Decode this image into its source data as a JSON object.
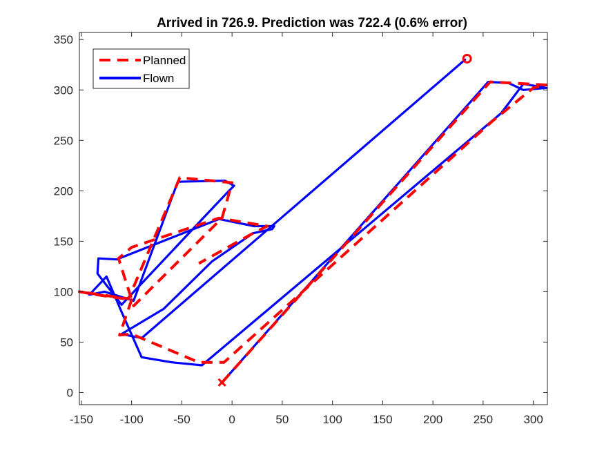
{
  "chart_data": {
    "type": "line",
    "title": "Arrived in 726.9.  Prediction was 722.4 (0.6% error)",
    "xlabel": "",
    "ylabel": "",
    "xlim": [
      -152,
      314
    ],
    "ylim": [
      -12,
      357
    ],
    "xticks": [
      -150,
      -100,
      -50,
      0,
      50,
      100,
      150,
      200,
      250,
      300
    ],
    "yticks": [
      0,
      50,
      100,
      150,
      200,
      250,
      300,
      350
    ],
    "grid": false,
    "legend": {
      "location": "top-left",
      "entries": [
        "Planned",
        "Flown"
      ]
    },
    "series": [
      {
        "name": "Planned",
        "color": "#ff0000",
        "style": "dashed",
        "x": [
          -10,
          257,
          313,
          300,
          258,
          -8,
          -33,
          -100,
          -112,
          -100,
          -135,
          -152,
          -103,
          -52,
          0,
          -10,
          -98,
          -113,
          -100,
          -13,
          35,
          21,
          -33
        ],
        "y": [
          10,
          308,
          305,
          302,
          268,
          30,
          30,
          58,
          57,
          92,
          97,
          100,
          93,
          213,
          208,
          173,
          86,
          133,
          144,
          173,
          165,
          158,
          128
        ]
      },
      {
        "name": "Flown",
        "color": "#0000ff",
        "style": "solid",
        "x": [
          -10,
          255,
          275,
          290,
          313,
          290,
          268,
          -30,
          -60,
          -90,
          -110,
          -125,
          -142,
          -127,
          -98,
          -54,
          -7,
          2,
          -4,
          -24,
          -110,
          -134,
          -133,
          -115,
          -13,
          22,
          42,
          40,
          21,
          -20,
          -68,
          -110,
          -90,
          232
        ],
        "y": [
          10,
          308,
          307,
          300,
          302,
          306,
          277,
          27,
          30,
          35,
          80,
          115,
          97,
          100,
          91,
          209,
          210,
          205,
          199,
          178,
          87,
          118,
          133,
          132,
          172,
          165,
          165,
          162,
          158,
          130,
          83,
          58,
          54,
          330
        ]
      }
    ],
    "markers": [
      {
        "symbol": "x",
        "color": "#ff0000",
        "x": -10,
        "y": 10
      },
      {
        "symbol": "o",
        "color": "#ff0000",
        "x": 234,
        "y": 331
      }
    ]
  }
}
